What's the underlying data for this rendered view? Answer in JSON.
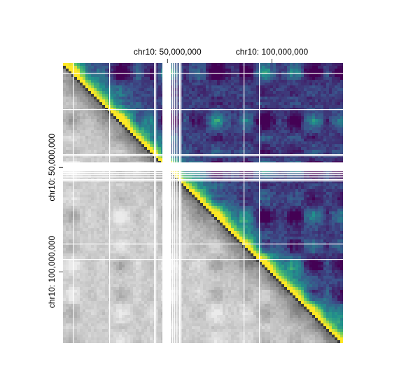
{
  "chart_data": {
    "type": "heatmap",
    "title": "",
    "chromosome": "chr10",
    "upper_triangle_colormap": "viridis",
    "lower_triangle_colormap": "gray",
    "x_axis": {
      "position": "top",
      "ticks": [
        {
          "value": 50000000,
          "label": "chr10: 50,000,000"
        },
        {
          "value": 100000000,
          "label": "chr10: 100,000,000"
        }
      ]
    },
    "y_axis": {
      "position": "left",
      "ticks": [
        {
          "value": 50000000,
          "label": "chr10: 50,000,000"
        },
        {
          "value": 100000000,
          "label": "chr10: 100,000,000"
        }
      ]
    },
    "colors": {
      "diagonal": "#fde725",
      "near_diagonal": "#3cbb75",
      "mid": "#21918c",
      "far": "#3b528b",
      "farthest": "#440154",
      "lower_light": "#d0d0d0",
      "lower_dark": "#606060",
      "gap": "#ffffff"
    }
  }
}
